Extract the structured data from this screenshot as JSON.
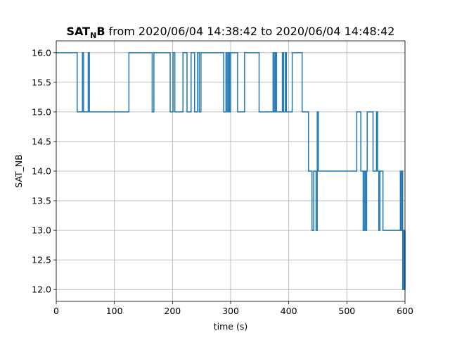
{
  "chart_data": {
    "type": "line",
    "step": "post",
    "title": {
      "prefix_bold": "SAT",
      "subscript_bold": "N",
      "suffix_bold": "B",
      "rest": " from 2020/06/04 14:38:42 to 2020/06/04 14:48:42"
    },
    "xlabel": "time (s)",
    "ylabel": "SAT_NB",
    "xlim": [
      0,
      600
    ],
    "ylim": [
      11.8,
      16.2
    ],
    "xticks": [
      0,
      100,
      200,
      300,
      400,
      500,
      600
    ],
    "yticks": [
      12.0,
      12.5,
      13.0,
      13.5,
      14.0,
      14.5,
      15.0,
      15.5,
      16.0
    ],
    "xtick_labels": [
      "0",
      "100",
      "200",
      "300",
      "400",
      "500",
      "600"
    ],
    "ytick_labels": [
      "12.0",
      "12.5",
      "13.0",
      "13.5",
      "14.0",
      "14.5",
      "15.0",
      "15.5",
      "16.0"
    ],
    "grid": true,
    "line_color": "#1f77b4",
    "series": [
      {
        "x": [
          0,
          36,
          45,
          47,
          55,
          57,
          125,
          165,
          168,
          196,
          201,
          204,
          218,
          225,
          232,
          238,
          243,
          246,
          249,
          288,
          292,
          294,
          296,
          298,
          300,
          312,
          324,
          349,
          373,
          375,
          377,
          379,
          389,
          391,
          394,
          396,
          406,
          423,
          434,
          440,
          443,
          447,
          449,
          451,
          517,
          524,
          528,
          530,
          532,
          534,
          535,
          545,
          551,
          553,
          555,
          557,
          562,
          592,
          593,
          595,
          596,
          597,
          599,
          600
        ],
        "y": [
          16,
          15,
          16,
          15,
          16,
          15,
          16,
          15,
          16,
          15,
          16,
          15,
          16,
          15,
          16,
          15,
          16,
          15,
          16,
          15,
          16,
          15,
          16,
          15,
          16,
          15,
          16,
          15,
          16,
          15,
          16,
          15,
          16,
          15,
          16,
          15,
          16,
          15,
          14,
          13,
          14,
          13,
          15,
          14,
          15,
          14,
          13,
          14,
          13,
          14,
          15,
          14,
          15,
          14,
          13,
          14,
          13,
          14,
          13,
          14,
          12,
          13,
          12,
          13
        ]
      }
    ]
  }
}
